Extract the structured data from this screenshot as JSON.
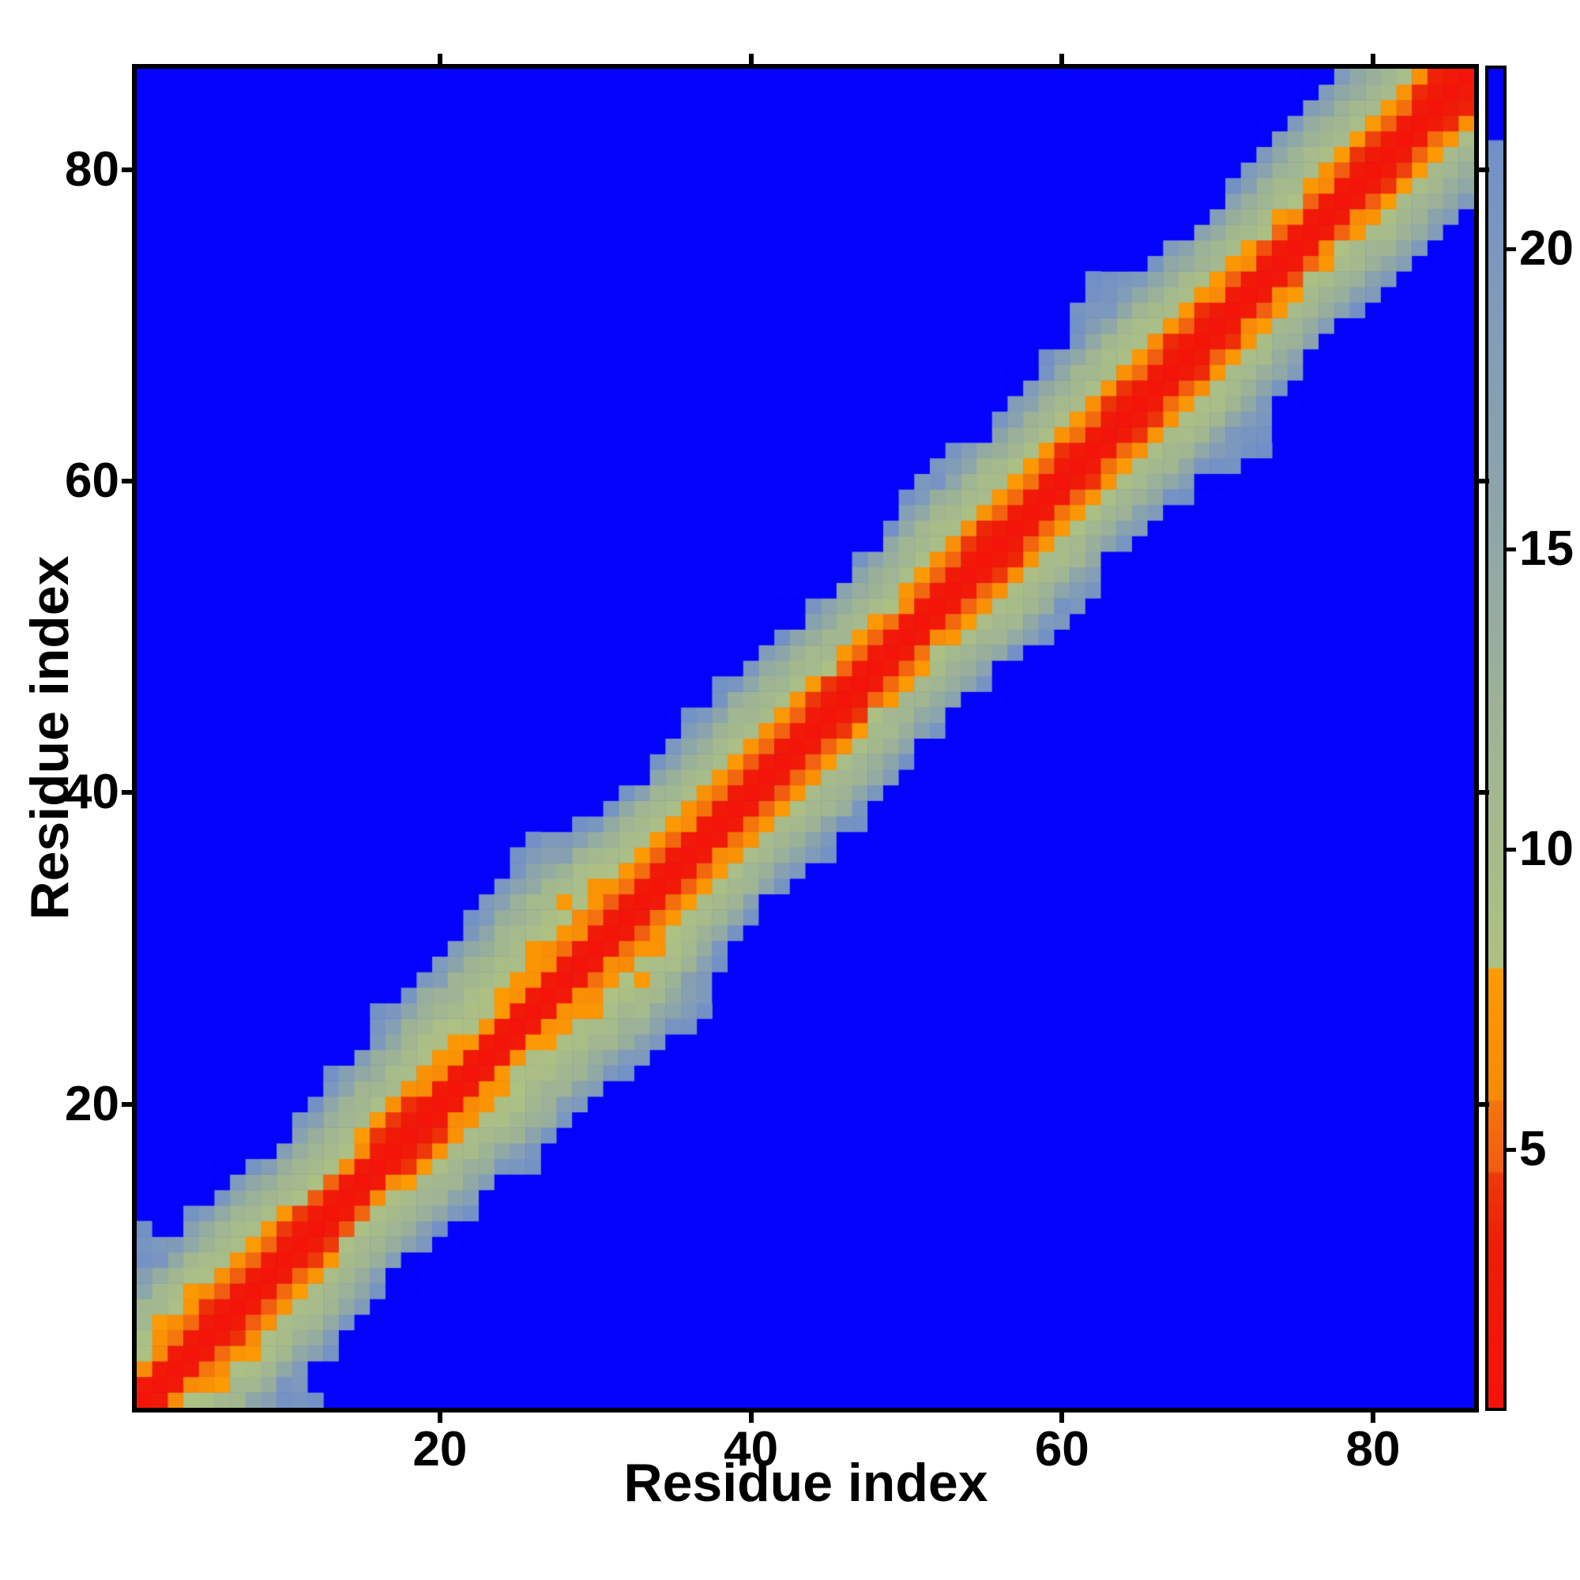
{
  "chart_data": {
    "type": "heatmap",
    "title": "",
    "xlabel": "Residue index",
    "ylabel": "Residue index",
    "x_ticks": [
      20,
      40,
      60,
      80
    ],
    "y_ticks": [
      20,
      40,
      60,
      80
    ],
    "axis_range": [
      0.5,
      86.5
    ],
    "n_residues": 86,
    "grid": false,
    "legend": "none",
    "colorbar": {
      "position": "right",
      "range": [
        0.7,
        23.0
      ],
      "ticks": [
        5,
        10,
        15,
        20
      ]
    },
    "colors": {
      "background_blue": "#0403fc",
      "diagonal_red": "#f5120a",
      "near_band_orange": "#fb9303",
      "mid_band_olive": "#aabf85",
      "outer_band_steel": "#7b97bb",
      "frame": "#000000"
    },
    "colormap_stops": [
      [
        0.7,
        "#f5120a"
      ],
      [
        3.4,
        "#ef1d07"
      ],
      [
        4.6,
        "#ed3a09"
      ],
      [
        4.63,
        "#f15c11"
      ],
      [
        5.8,
        "#f4760c"
      ],
      [
        5.83,
        "#f88a07"
      ],
      [
        8.0,
        "#fc9b02"
      ],
      [
        8.03,
        "#adc183"
      ],
      [
        12.0,
        "#9fb494"
      ],
      [
        16.0,
        "#8ba4ac"
      ],
      [
        19.0,
        "#809bba"
      ],
      [
        21.8,
        "#7190c7"
      ],
      [
        21.83,
        "#0403fc"
      ],
      [
        24.5,
        "#0403fc"
      ]
    ],
    "band_model": {
      "description": "Residue-residue distance matrix: value depends on sequence separation |i-j| (diagonal band), with a wider orange loop bulge near residues 20-33, a compact red C-terminal corner, a slightly frayed N-terminus, smooth width modulation along the diagonal and symmetric cell noise; distances beyond ~21.8 render as background blue.",
      "offset_profile_regular": [
        1.2,
        2.6,
        5.0,
        7.4,
        9.4,
        10.8,
        12.4,
        15.5,
        20.0,
        22.6,
        24.5
      ],
      "offset_profile_loop": [
        1.2,
        2.6,
        6.5,
        7.3,
        8.1,
        9.0,
        10.6,
        12.4,
        14.8,
        18.5,
        21.6,
        24.5
      ],
      "offset_profile_nterm": [
        1.2,
        2.6,
        6.3,
        7.8,
        9.3,
        10.8,
        12.5,
        15.5,
        19.5,
        22.5,
        24.5,
        24.5
      ],
      "offset_profile_cterm": [
        1.2,
        2.6,
        3.6,
        5.6,
        7.6,
        9.2,
        11.0,
        13.2,
        16.0,
        19.5,
        22.5,
        24.5
      ],
      "noise_amplitude": [
        0.08,
        0.12,
        0.9,
        0.7,
        0.9,
        0.9,
        1.0,
        1.3,
        2.2,
        1.3,
        1.5,
        0.8
      ],
      "loop_region": [
        20,
        33
      ],
      "background_value": 24.5
    }
  }
}
